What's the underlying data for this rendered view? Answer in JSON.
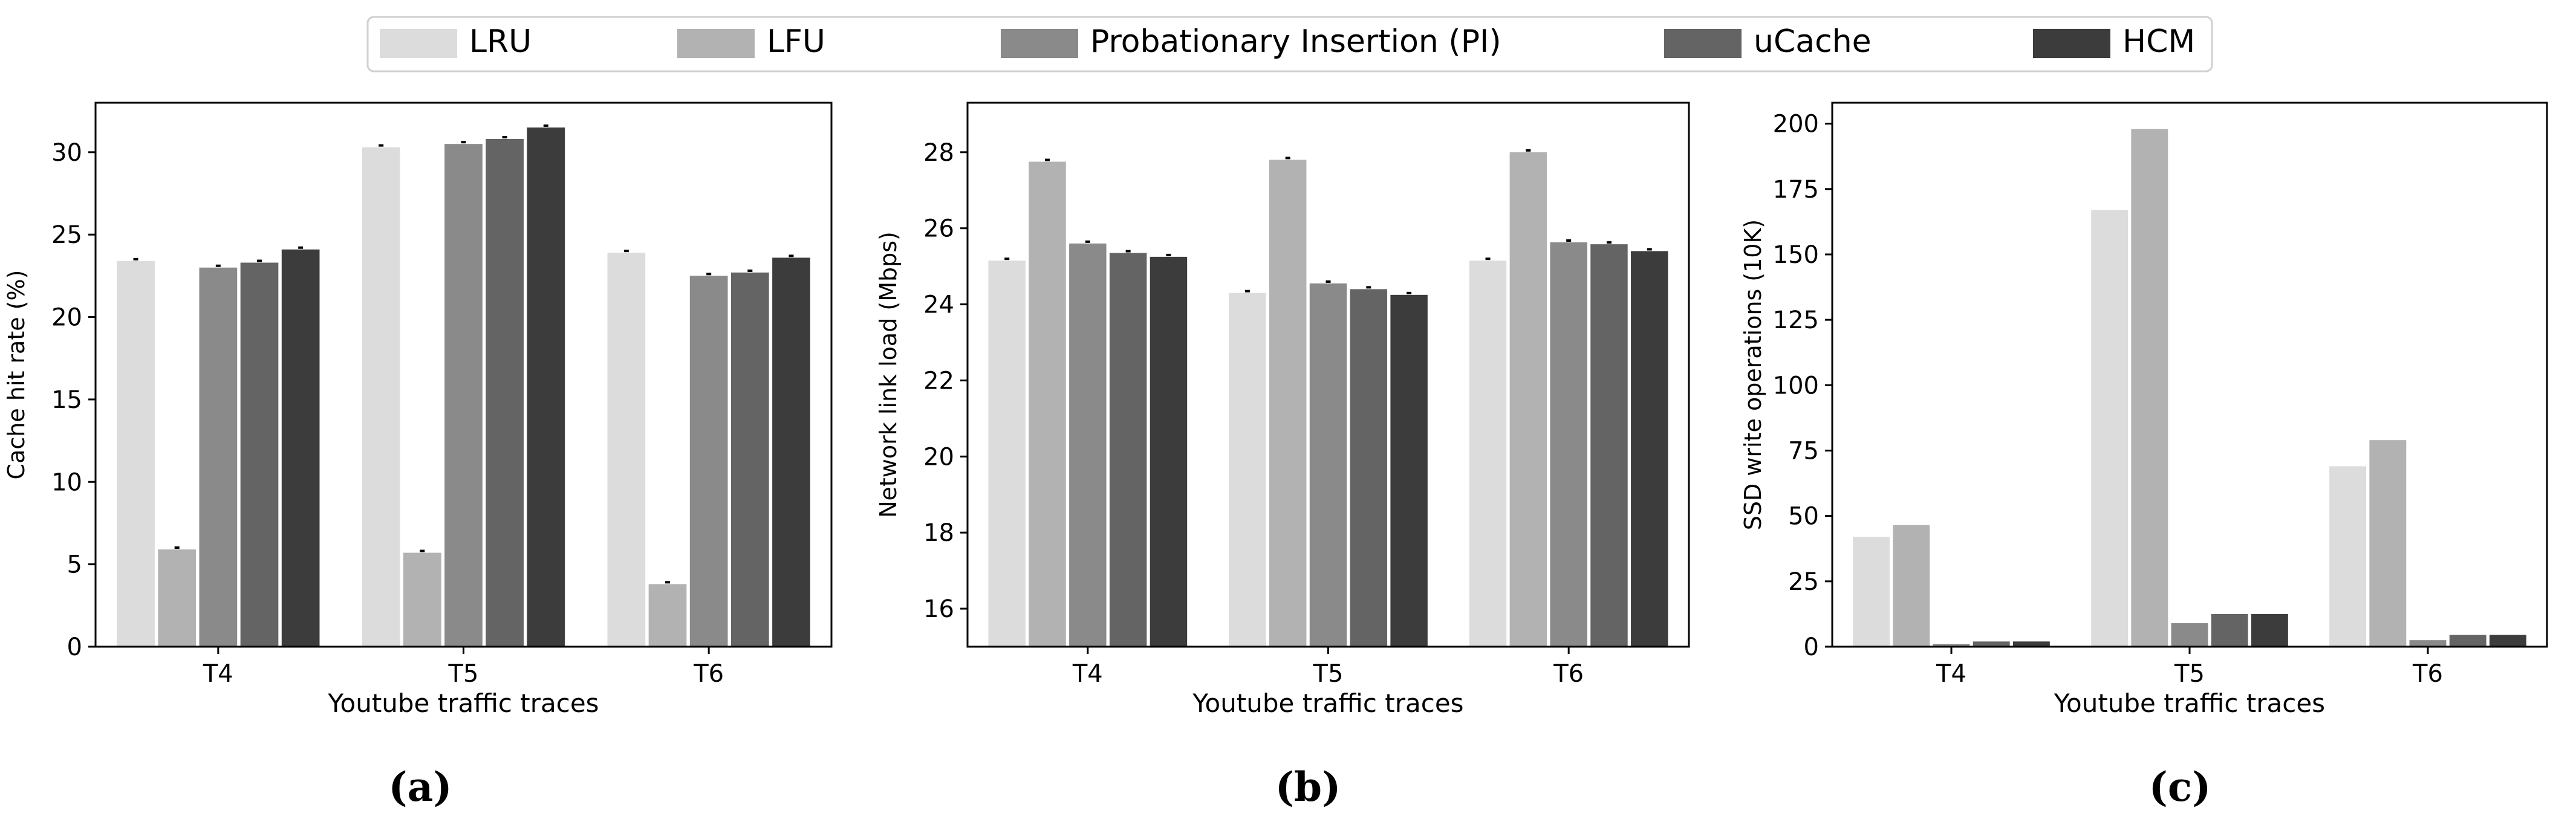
{
  "chart_data": [
    {
      "type": "bar",
      "panel_label": "(a)",
      "xlabel": "Youtube traffic traces",
      "ylabel": "Cache hit rate (%)",
      "categories": [
        "T4",
        "T5",
        "T6"
      ],
      "ylim": [
        0,
        33
      ],
      "yticks": [
        0,
        5,
        10,
        15,
        20,
        25,
        30
      ],
      "error_bars": true,
      "series": [
        {
          "name": "LRU",
          "values": [
            23.4,
            30.3,
            23.9
          ]
        },
        {
          "name": "LFU",
          "values": [
            5.9,
            5.7,
            3.8
          ]
        },
        {
          "name": "Probationary Insertion (PI)",
          "values": [
            23.0,
            30.5,
            22.5
          ]
        },
        {
          "name": "uCache",
          "values": [
            23.3,
            30.8,
            22.7
          ]
        },
        {
          "name": "HCM",
          "values": [
            24.1,
            31.5,
            23.6
          ]
        }
      ]
    },
    {
      "type": "bar",
      "panel_label": "(b)",
      "xlabel": "Youtube traffic traces",
      "ylabel": "Network link load (Mbps)",
      "categories": [
        "T4",
        "T5",
        "T6"
      ],
      "ylim": [
        15,
        29.3
      ],
      "yticks": [
        16,
        18,
        20,
        22,
        24,
        26,
        28
      ],
      "error_bars": true,
      "series": [
        {
          "name": "LRU",
          "values": [
            25.15,
            24.3,
            25.15
          ]
        },
        {
          "name": "LFU",
          "values": [
            27.75,
            27.8,
            28.0
          ]
        },
        {
          "name": "Probationary Insertion (PI)",
          "values": [
            25.6,
            24.55,
            25.63
          ]
        },
        {
          "name": "uCache",
          "values": [
            25.35,
            24.4,
            25.58
          ]
        },
        {
          "name": "HCM",
          "values": [
            25.25,
            24.25,
            25.4
          ]
        }
      ]
    },
    {
      "type": "bar",
      "panel_label": "(c)",
      "xlabel": "Youtube traffic traces",
      "ylabel": "SSD write operations (10K)",
      "categories": [
        "T4",
        "T5",
        "T6"
      ],
      "ylim": [
        0,
        208
      ],
      "yticks": [
        0,
        25,
        50,
        75,
        100,
        125,
        150,
        175,
        200
      ],
      "error_bars": false,
      "series": [
        {
          "name": "LRU",
          "values": [
            42,
            167,
            69
          ]
        },
        {
          "name": "LFU",
          "values": [
            46.5,
            198,
            79
          ]
        },
        {
          "name": "Probationary Insertion (PI)",
          "values": [
            1,
            9,
            2.5
          ]
        },
        {
          "name": "uCache",
          "values": [
            2,
            12.5,
            4.5
          ]
        },
        {
          "name": "HCM",
          "values": [
            2,
            12.5,
            4.5
          ]
        }
      ]
    }
  ],
  "legend": {
    "entries": [
      {
        "label": "LRU",
        "color": "#dcdcdc"
      },
      {
        "label": "LFU",
        "color": "#b2b2b2"
      },
      {
        "label": "Probationary Insertion (PI)",
        "color": "#8a8a8a"
      },
      {
        "label": "uCache",
        "color": "#646464"
      },
      {
        "label": "HCM",
        "color": "#3c3c3c"
      }
    ]
  }
}
